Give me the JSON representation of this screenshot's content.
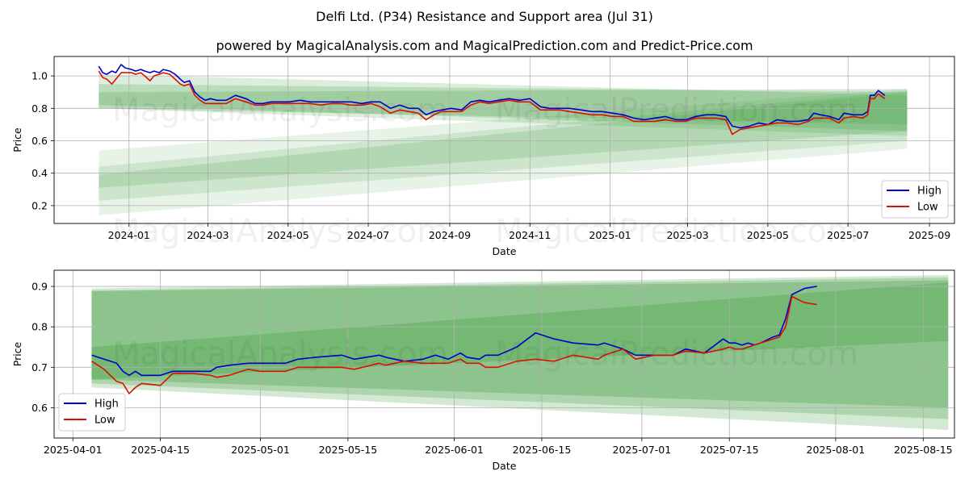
{
  "title": "Delfi Ltd. (P34) Resistance and Support area (Jul 31)",
  "subtitle": "powered by MagicalAnalysis.com and MagicalPrediction.com and Predict-Price.com",
  "watermarks": [
    "MagicalAnalysis.com",
    "MagicalPrediction.com"
  ],
  "colors": {
    "high": "#0000cc",
    "low": "#dd1100",
    "band": "#3a9a3a",
    "grid": "#b0b0b0"
  },
  "chart_data": [
    {
      "type": "line",
      "xlabel": "Date",
      "ylabel": "Price",
      "x_ticks": [
        "2024-01",
        "2024-03",
        "2024-05",
        "2024-07",
        "2024-09",
        "2024-11",
        "2025-01",
        "2025-03",
        "2025-05",
        "2025-07",
        "2025-09"
      ],
      "y_ticks": [
        "0.2",
        "0.4",
        "0.6",
        "0.8",
        "1.0"
      ],
      "xlim": [
        "2023-11-05",
        "2025-09-20"
      ],
      "ylim": [
        0.09,
        1.12
      ],
      "grid": true,
      "legend_position": "lower-right",
      "legend": [
        "High",
        "Low"
      ],
      "bands": [
        {
          "x_start": "2023-12-09",
          "x_end": "2025-08-15",
          "upper": [
            1.01,
            0.88
          ],
          "lower": [
            0.8,
            0.63
          ],
          "opacity": 0.18
        },
        {
          "x_start": "2023-12-09",
          "x_end": "2025-08-15",
          "upper": [
            0.95,
            0.9
          ],
          "lower": [
            0.82,
            0.66
          ],
          "opacity": 0.2
        },
        {
          "x_start": "2023-12-09",
          "x_end": "2025-08-15",
          "upper": [
            0.9,
            0.92
          ],
          "lower": [
            0.8,
            0.7
          ],
          "opacity": 0.22
        },
        {
          "x_start": "2023-12-09",
          "x_end": "2025-08-15",
          "upper": [
            0.54,
            0.92
          ],
          "lower": [
            0.14,
            0.55
          ],
          "opacity": 0.12
        },
        {
          "x_start": "2023-12-09",
          "x_end": "2025-08-15",
          "upper": [
            0.44,
            0.91
          ],
          "lower": [
            0.23,
            0.6
          ],
          "opacity": 0.15
        },
        {
          "x_start": "2023-12-09",
          "x_end": "2025-08-15",
          "upper": [
            0.39,
            0.9
          ],
          "lower": [
            0.31,
            0.66
          ],
          "opacity": 0.18
        }
      ],
      "series": [
        {
          "name": "High",
          "x": [
            "2023-12-09",
            "2023-12-12",
            "2023-12-15",
            "2023-12-19",
            "2023-12-22",
            "2023-12-26",
            "2023-12-29",
            "2024-01-03",
            "2024-01-06",
            "2024-01-10",
            "2024-01-13",
            "2024-01-17",
            "2024-01-20",
            "2024-01-24",
            "2024-01-27",
            "2024-02-01",
            "2024-02-05",
            "2024-02-09",
            "2024-02-12",
            "2024-02-16",
            "2024-02-20",
            "2024-02-24",
            "2024-02-28",
            "2024-03-03",
            "2024-03-08",
            "2024-03-15",
            "2024-03-22",
            "2024-03-30",
            "2024-04-06",
            "2024-04-12",
            "2024-04-18",
            "2024-04-25",
            "2024-05-02",
            "2024-05-10",
            "2024-05-18",
            "2024-05-26",
            "2024-06-03",
            "2024-06-10",
            "2024-06-18",
            "2024-06-26",
            "2024-07-03",
            "2024-07-10",
            "2024-07-18",
            "2024-07-25",
            "2024-08-01",
            "2024-08-08",
            "2024-08-14",
            "2024-08-20",
            "2024-08-26",
            "2024-09-02",
            "2024-09-10",
            "2024-09-17",
            "2024-09-24",
            "2024-10-01",
            "2024-10-08",
            "2024-10-16",
            "2024-10-24",
            "2024-11-01",
            "2024-11-09",
            "2024-11-16",
            "2024-11-24",
            "2024-12-01",
            "2024-12-10",
            "2024-12-18",
            "2024-12-26",
            "2025-01-03",
            "2025-01-11",
            "2025-01-19",
            "2025-01-27",
            "2025-02-04",
            "2025-02-12",
            "2025-02-20",
            "2025-02-28",
            "2025-03-07",
            "2025-03-15",
            "2025-03-22",
            "2025-03-30",
            "2025-04-04",
            "2025-04-10",
            "2025-04-17",
            "2025-04-24",
            "2025-05-01",
            "2025-05-08",
            "2025-05-16",
            "2025-05-24",
            "2025-06-01",
            "2025-06-05",
            "2025-06-10",
            "2025-06-17",
            "2025-06-24",
            "2025-06-28",
            "2025-07-05",
            "2025-07-12",
            "2025-07-16",
            "2025-07-18",
            "2025-07-21",
            "2025-07-24",
            "2025-07-29"
          ],
          "y": [
            1.06,
            1.02,
            1.01,
            1.03,
            1.02,
            1.07,
            1.05,
            1.04,
            1.03,
            1.04,
            1.03,
            1.02,
            1.03,
            1.02,
            1.04,
            1.03,
            1.01,
            0.98,
            0.96,
            0.97,
            0.9,
            0.87,
            0.85,
            0.86,
            0.85,
            0.85,
            0.88,
            0.86,
            0.83,
            0.83,
            0.84,
            0.84,
            0.84,
            0.85,
            0.84,
            0.84,
            0.84,
            0.84,
            0.84,
            0.83,
            0.84,
            0.84,
            0.8,
            0.82,
            0.8,
            0.8,
            0.76,
            0.78,
            0.79,
            0.8,
            0.79,
            0.84,
            0.85,
            0.84,
            0.85,
            0.86,
            0.85,
            0.86,
            0.81,
            0.8,
            0.8,
            0.8,
            0.79,
            0.78,
            0.78,
            0.77,
            0.76,
            0.74,
            0.73,
            0.74,
            0.75,
            0.73,
            0.73,
            0.75,
            0.76,
            0.76,
            0.75,
            0.69,
            0.68,
            0.69,
            0.71,
            0.7,
            0.73,
            0.72,
            0.72,
            0.73,
            0.77,
            0.76,
            0.75,
            0.73,
            0.77,
            0.76,
            0.76,
            0.78,
            0.88,
            0.88,
            0.91,
            0.88
          ]
        },
        {
          "name": "Low",
          "x": [
            "2023-12-09",
            "2023-12-12",
            "2023-12-15",
            "2023-12-19",
            "2023-12-22",
            "2023-12-26",
            "2023-12-29",
            "2024-01-03",
            "2024-01-06",
            "2024-01-10",
            "2024-01-13",
            "2024-01-17",
            "2024-01-20",
            "2024-01-24",
            "2024-01-27",
            "2024-02-01",
            "2024-02-05",
            "2024-02-09",
            "2024-02-12",
            "2024-02-16",
            "2024-02-20",
            "2024-02-24",
            "2024-02-28",
            "2024-03-03",
            "2024-03-08",
            "2024-03-15",
            "2024-03-22",
            "2024-03-30",
            "2024-04-06",
            "2024-04-12",
            "2024-04-18",
            "2024-04-25",
            "2024-05-02",
            "2024-05-10",
            "2024-05-18",
            "2024-05-26",
            "2024-06-03",
            "2024-06-10",
            "2024-06-18",
            "2024-06-26",
            "2024-07-03",
            "2024-07-10",
            "2024-07-18",
            "2024-07-25",
            "2024-08-01",
            "2024-08-08",
            "2024-08-14",
            "2024-08-20",
            "2024-08-26",
            "2024-09-02",
            "2024-09-10",
            "2024-09-17",
            "2024-09-24",
            "2024-10-01",
            "2024-10-08",
            "2024-10-16",
            "2024-10-24",
            "2024-11-01",
            "2024-11-09",
            "2024-11-16",
            "2024-11-24",
            "2024-12-01",
            "2024-12-10",
            "2024-12-18",
            "2024-12-26",
            "2025-01-03",
            "2025-01-11",
            "2025-01-19",
            "2025-01-27",
            "2025-02-04",
            "2025-02-12",
            "2025-02-20",
            "2025-02-28",
            "2025-03-07",
            "2025-03-15",
            "2025-03-22",
            "2025-03-30",
            "2025-04-04",
            "2025-04-10",
            "2025-04-17",
            "2025-04-24",
            "2025-05-01",
            "2025-05-08",
            "2025-05-16",
            "2025-05-24",
            "2025-06-01",
            "2025-06-05",
            "2025-06-10",
            "2025-06-17",
            "2025-06-24",
            "2025-06-28",
            "2025-07-05",
            "2025-07-12",
            "2025-07-16",
            "2025-07-18",
            "2025-07-21",
            "2025-07-24",
            "2025-07-29"
          ],
          "y": [
            1.03,
            0.99,
            0.98,
            0.95,
            0.98,
            1.02,
            1.02,
            1.02,
            1.01,
            1.02,
            1.0,
            0.97,
            1.0,
            1.01,
            1.02,
            1.01,
            0.98,
            0.95,
            0.94,
            0.95,
            0.88,
            0.85,
            0.83,
            0.83,
            0.83,
            0.83,
            0.86,
            0.84,
            0.82,
            0.82,
            0.83,
            0.83,
            0.83,
            0.83,
            0.83,
            0.82,
            0.83,
            0.83,
            0.82,
            0.82,
            0.83,
            0.81,
            0.77,
            0.79,
            0.78,
            0.77,
            0.73,
            0.76,
            0.78,
            0.78,
            0.78,
            0.82,
            0.84,
            0.83,
            0.84,
            0.85,
            0.84,
            0.84,
            0.79,
            0.79,
            0.79,
            0.78,
            0.77,
            0.76,
            0.76,
            0.75,
            0.75,
            0.72,
            0.72,
            0.72,
            0.73,
            0.72,
            0.72,
            0.74,
            0.74,
            0.74,
            0.73,
            0.64,
            0.67,
            0.68,
            0.69,
            0.7,
            0.71,
            0.71,
            0.7,
            0.72,
            0.74,
            0.74,
            0.74,
            0.71,
            0.74,
            0.75,
            0.74,
            0.76,
            0.86,
            0.86,
            0.89,
            0.86
          ]
        }
      ]
    },
    {
      "type": "line",
      "xlabel": "Date",
      "ylabel": "Price",
      "x_ticks": [
        "2025-04-01",
        "2025-04-15",
        "2025-05-01",
        "2025-05-15",
        "2025-06-01",
        "2025-06-15",
        "2025-07-01",
        "2025-07-15",
        "2025-08-01",
        "2025-08-15"
      ],
      "y_ticks": [
        "0.6",
        "0.7",
        "0.8",
        "0.9"
      ],
      "xlim": [
        "2025-03-29",
        "2025-08-20"
      ],
      "ylim": [
        0.525,
        0.94
      ],
      "grid": true,
      "legend_position": "lower-left",
      "legend": [
        "High",
        "Low"
      ],
      "bands": [
        {
          "x_start": "2025-04-04",
          "x_end": "2025-08-19",
          "upper": [
            0.895,
            0.928
          ],
          "lower": [
            0.65,
            0.545
          ],
          "opacity": 0.22
        },
        {
          "x_start": "2025-04-04",
          "x_end": "2025-08-19",
          "upper": [
            0.89,
            0.922
          ],
          "lower": [
            0.66,
            0.572
          ],
          "opacity": 0.25
        },
        {
          "x_start": "2025-04-04",
          "x_end": "2025-08-19",
          "upper": [
            0.888,
            0.915
          ],
          "lower": [
            0.67,
            0.6
          ],
          "opacity": 0.28
        },
        {
          "x_start": "2025-04-04",
          "x_end": "2025-08-19",
          "upper": [
            0.75,
            0.91
          ],
          "lower": [
            0.67,
            0.765
          ],
          "opacity": 0.3
        }
      ],
      "series": [
        {
          "name": "High",
          "x": [
            "2025-04-04",
            "2025-04-06",
            "2025-04-08",
            "2025-04-09",
            "2025-04-10",
            "2025-04-11",
            "2025-04-12",
            "2025-04-15",
            "2025-04-17",
            "2025-04-20",
            "2025-04-23",
            "2025-04-24",
            "2025-04-26",
            "2025-04-29",
            "2025-05-01",
            "2025-05-05",
            "2025-05-07",
            "2025-05-10",
            "2025-05-14",
            "2025-05-16",
            "2025-05-20",
            "2025-05-21",
            "2025-05-24",
            "2025-05-27",
            "2025-05-29",
            "2025-05-31",
            "2025-06-02",
            "2025-06-03",
            "2025-06-05",
            "2025-06-06",
            "2025-06-08",
            "2025-06-11",
            "2025-06-14",
            "2025-06-17",
            "2025-06-20",
            "2025-06-24",
            "2025-06-25",
            "2025-06-27",
            "2025-06-28",
            "2025-06-30",
            "2025-07-03",
            "2025-07-06",
            "2025-07-08",
            "2025-07-11",
            "2025-07-14",
            "2025-07-15",
            "2025-07-16",
            "2025-07-17",
            "2025-07-18",
            "2025-07-19",
            "2025-07-20",
            "2025-07-22",
            "2025-07-23",
            "2025-07-24",
            "2025-07-25",
            "2025-07-27",
            "2025-07-29"
          ],
          "y": [
            0.73,
            0.72,
            0.71,
            0.69,
            0.68,
            0.69,
            0.68,
            0.68,
            0.69,
            0.69,
            0.69,
            0.7,
            0.705,
            0.71,
            0.71,
            0.71,
            0.72,
            0.725,
            0.73,
            0.72,
            0.73,
            0.725,
            0.715,
            0.72,
            0.73,
            0.72,
            0.735,
            0.725,
            0.72,
            0.73,
            0.73,
            0.75,
            0.785,
            0.77,
            0.76,
            0.755,
            0.76,
            0.75,
            0.745,
            0.73,
            0.73,
            0.73,
            0.745,
            0.735,
            0.77,
            0.76,
            0.76,
            0.755,
            0.76,
            0.755,
            0.76,
            0.775,
            0.78,
            0.82,
            0.88,
            0.895,
            0.9
          ]
        },
        {
          "name": "Low",
          "x": [
            "2025-04-04",
            "2025-04-06",
            "2025-04-08",
            "2025-04-09",
            "2025-04-10",
            "2025-04-11",
            "2025-04-12",
            "2025-04-15",
            "2025-04-17",
            "2025-04-20",
            "2025-04-23",
            "2025-04-24",
            "2025-04-26",
            "2025-04-29",
            "2025-05-01",
            "2025-05-05",
            "2025-05-07",
            "2025-05-10",
            "2025-05-14",
            "2025-05-16",
            "2025-05-20",
            "2025-05-21",
            "2025-05-24",
            "2025-05-27",
            "2025-05-29",
            "2025-05-31",
            "2025-06-02",
            "2025-06-03",
            "2025-06-05",
            "2025-06-06",
            "2025-06-08",
            "2025-06-11",
            "2025-06-14",
            "2025-06-17",
            "2025-06-20",
            "2025-06-24",
            "2025-06-25",
            "2025-06-27",
            "2025-06-28",
            "2025-06-30",
            "2025-07-03",
            "2025-07-06",
            "2025-07-08",
            "2025-07-11",
            "2025-07-14",
            "2025-07-15",
            "2025-07-16",
            "2025-07-17",
            "2025-07-18",
            "2025-07-19",
            "2025-07-20",
            "2025-07-22",
            "2025-07-23",
            "2025-07-24",
            "2025-07-25",
            "2025-07-27",
            "2025-07-29"
          ],
          "y": [
            0.715,
            0.695,
            0.665,
            0.66,
            0.635,
            0.65,
            0.66,
            0.655,
            0.685,
            0.685,
            0.68,
            0.675,
            0.68,
            0.695,
            0.69,
            0.69,
            0.7,
            0.7,
            0.7,
            0.695,
            0.71,
            0.705,
            0.715,
            0.71,
            0.71,
            0.71,
            0.72,
            0.71,
            0.71,
            0.7,
            0.7,
            0.715,
            0.72,
            0.715,
            0.73,
            0.72,
            0.73,
            0.74,
            0.745,
            0.72,
            0.73,
            0.73,
            0.74,
            0.735,
            0.745,
            0.75,
            0.745,
            0.745,
            0.75,
            0.755,
            0.76,
            0.77,
            0.775,
            0.8,
            0.875,
            0.86,
            0.855
          ]
        }
      ]
    }
  ]
}
